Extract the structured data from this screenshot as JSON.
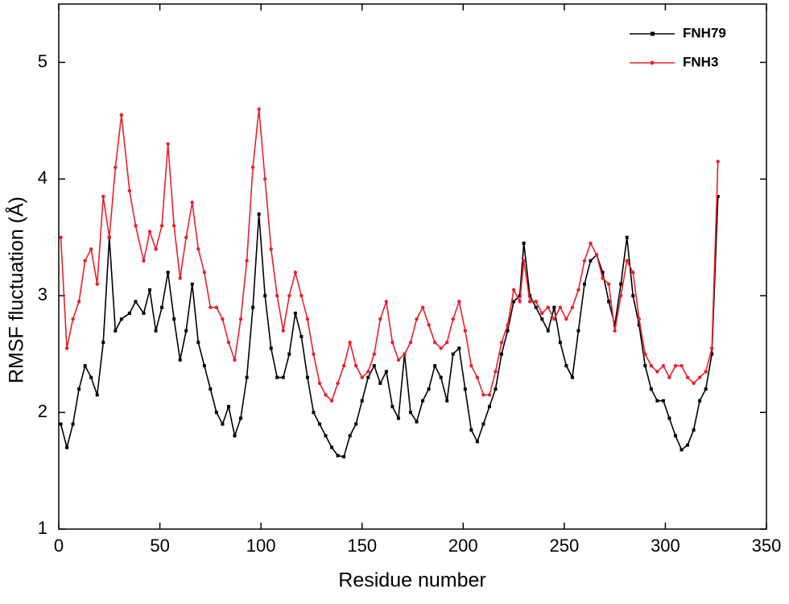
{
  "chart_data": {
    "type": "line",
    "xlabel": "Residue number",
    "ylabel": "RMSF fluctuation (Å)",
    "xlim": [
      0,
      350
    ],
    "xticks": [
      0,
      50,
      100,
      150,
      200,
      250,
      300,
      350
    ],
    "ylim": [
      1,
      5.5
    ],
    "yticks": [
      1,
      2,
      3,
      4,
      5
    ],
    "legend": "upper right",
    "x": [
      1,
      4,
      7,
      10,
      13,
      16,
      19,
      22,
      25,
      28,
      31,
      35,
      38,
      42,
      45,
      48,
      51,
      54,
      57,
      60,
      63,
      66,
      69,
      72,
      75,
      78,
      81,
      84,
      87,
      90,
      93,
      96,
      99,
      102,
      105,
      108,
      111,
      114,
      117,
      120,
      123,
      126,
      129,
      132,
      135,
      138,
      141,
      144,
      147,
      150,
      153,
      156,
      159,
      162,
      165,
      168,
      171,
      174,
      177,
      180,
      183,
      186,
      189,
      192,
      195,
      198,
      201,
      204,
      207,
      210,
      213,
      216,
      219,
      222,
      225,
      228,
      230,
      233,
      236,
      239,
      242,
      245,
      248,
      251,
      254,
      257,
      260,
      263,
      266,
      269,
      272,
      275,
      278,
      281,
      284,
      287,
      290,
      293,
      296,
      299,
      302,
      305,
      308,
      311,
      314,
      317,
      320,
      323,
      326
    ],
    "series": [
      {
        "name": "FNH79",
        "color": "#000000",
        "values": [
          1.9,
          1.7,
          1.9,
          2.2,
          2.4,
          2.3,
          2.15,
          2.6,
          3.5,
          2.7,
          2.8,
          2.85,
          2.95,
          2.85,
          3.05,
          2.7,
          2.9,
          3.2,
          2.8,
          2.45,
          2.7,
          3.1,
          2.6,
          2.4,
          2.2,
          2.0,
          1.9,
          2.05,
          1.8,
          1.95,
          2.3,
          2.9,
          3.7,
          3.0,
          2.55,
          2.3,
          2.3,
          2.5,
          2.85,
          2.65,
          2.3,
          2.0,
          1.9,
          1.8,
          1.7,
          1.63,
          1.62,
          1.8,
          1.9,
          2.1,
          2.3,
          2.4,
          2.25,
          2.35,
          2.05,
          1.95,
          2.5,
          2.0,
          1.92,
          2.1,
          2.2,
          2.4,
          2.3,
          2.1,
          2.5,
          2.55,
          2.2,
          1.85,
          1.75,
          1.9,
          2.05,
          2.2,
          2.5,
          2.7,
          2.95,
          3.0,
          3.45,
          3.0,
          2.9,
          2.8,
          2.7,
          2.9,
          2.6,
          2.4,
          2.3,
          2.7,
          3.1,
          3.3,
          3.35,
          3.2,
          2.95,
          2.75,
          3.1,
          3.5,
          3.0,
          2.75,
          2.4,
          2.2,
          2.1,
          2.1,
          1.95,
          1.8,
          1.68,
          1.72,
          1.85,
          2.1,
          2.2,
          2.5,
          3.85
        ]
      },
      {
        "name": "FNH3",
        "color": "#e8202a",
        "values": [
          3.5,
          2.55,
          2.8,
          2.95,
          3.3,
          3.4,
          3.1,
          3.85,
          3.5,
          4.1,
          4.55,
          3.9,
          3.6,
          3.3,
          3.55,
          3.4,
          3.6,
          4.3,
          3.6,
          3.15,
          3.5,
          3.8,
          3.4,
          3.2,
          2.9,
          2.9,
          2.8,
          2.6,
          2.45,
          2.8,
          3.3,
          4.1,
          4.6,
          4.0,
          3.4,
          3.0,
          2.7,
          3.0,
          3.2,
          3.0,
          2.8,
          2.5,
          2.25,
          2.15,
          2.1,
          2.25,
          2.4,
          2.6,
          2.4,
          2.3,
          2.35,
          2.5,
          2.8,
          2.95,
          2.6,
          2.45,
          2.5,
          2.6,
          2.8,
          2.9,
          2.75,
          2.6,
          2.55,
          2.6,
          2.8,
          2.95,
          2.7,
          2.4,
          2.3,
          2.15,
          2.15,
          2.35,
          2.6,
          2.75,
          3.05,
          2.95,
          3.3,
          2.95,
          2.95,
          2.85,
          2.9,
          2.8,
          2.9,
          2.8,
          2.9,
          3.05,
          3.3,
          3.45,
          3.35,
          3.15,
          3.1,
          2.7,
          3.0,
          3.3,
          3.2,
          2.8,
          2.5,
          2.4,
          2.35,
          2.4,
          2.3,
          2.4,
          2.4,
          2.3,
          2.25,
          2.3,
          2.35,
          2.55,
          4.15
        ]
      }
    ]
  }
}
